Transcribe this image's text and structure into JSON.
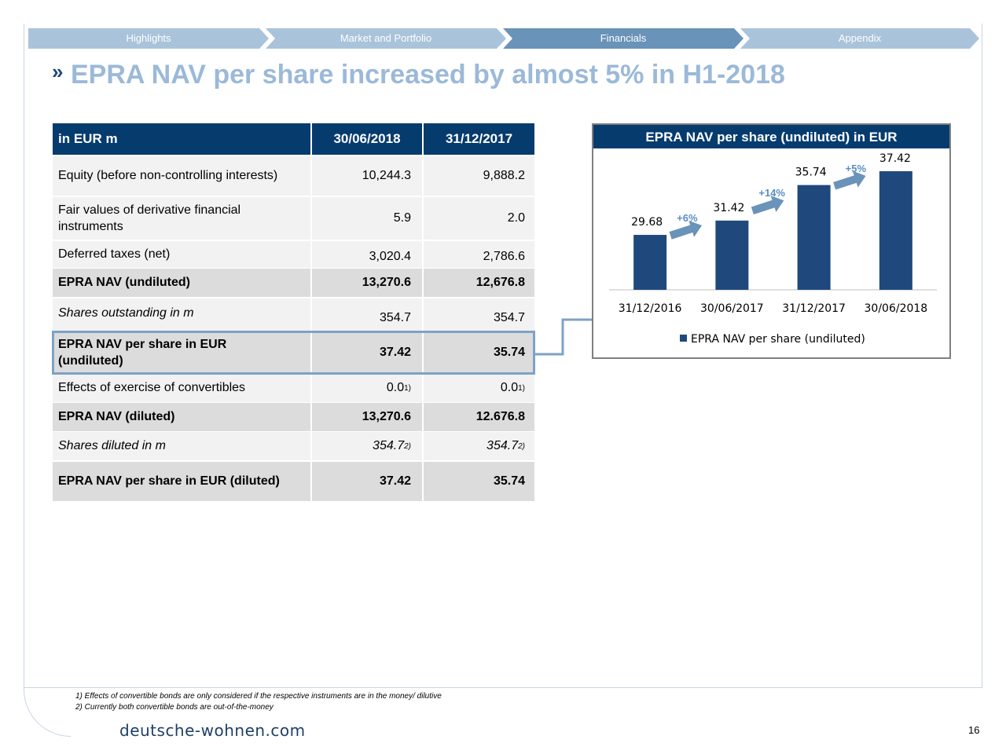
{
  "nav": {
    "tabs": [
      {
        "label": "Highlights",
        "color": "#a9c3da"
      },
      {
        "label": "Market and Portfolio",
        "color": "#a9c3da"
      },
      {
        "label": "Financials",
        "color": "#6993b8"
      },
      {
        "label": "Appendix",
        "color": "#a9c3da"
      }
    ]
  },
  "title": {
    "marker": "»",
    "text": "EPRA NAV per share increased by almost 5% in H1-2018"
  },
  "table": {
    "header": {
      "label": "in EUR m",
      "col1": "30/06/2018",
      "col2": "31/12/2017"
    },
    "rows": [
      {
        "label": "Equity (before non-controlling interests)",
        "v1": "10,244.3",
        "v2": "9,888.2"
      },
      {
        "label": "Fair values of derivative financial instruments",
        "v1": "5.9",
        "v2": "2.0"
      },
      {
        "label": "Deferred taxes (net)",
        "v1": "3,020.4",
        "v2": "2,786.6"
      },
      {
        "label": "EPRA NAV (undiluted)",
        "v1": "13,270.6",
        "v2": "12,676.8"
      },
      {
        "label": "Shares outstanding in m",
        "v1": "354.7",
        "v2": "354.7"
      },
      {
        "label": "EPRA NAV per share in EUR (undiluted)",
        "v1": "37.42",
        "v2": "35.74"
      },
      {
        "label": "Effects of exercise of convertibles",
        "v1": "0.0",
        "v1_sup": "1)",
        "v2": "0.0",
        "v2_sup": "1)"
      },
      {
        "label": "EPRA NAV (diluted)",
        "v1": "13,270.6",
        "v2": "12.676.8"
      },
      {
        "label": "Shares diluted in m",
        "v1": "354.7",
        "v1_sup": "2)",
        "v2": "354.7",
        "v2_sup": "2)"
      },
      {
        "label": "EPRA NAV per share in EUR (diluted)",
        "v1": "37.42",
        "v2": "35.74"
      }
    ]
  },
  "chart_data": {
    "type": "bar",
    "title": "EPRA NAV per share (undiluted) in EUR",
    "categories": [
      "31/12/2016",
      "30/06/2017",
      "31/12/2017",
      "30/06/2018"
    ],
    "series": [
      {
        "name": "EPRA NAV per share (undiluted)",
        "values": [
          29.68,
          31.42,
          35.74,
          37.42
        ]
      }
    ],
    "value_labels": [
      "29.68",
      "31.42",
      "35.74",
      "37.42"
    ],
    "annotations": [
      "+6%",
      "+14%",
      "+5%"
    ],
    "ylim": [
      0,
      40
    ],
    "legend": "bottom",
    "grid": false,
    "bar_color": "#1f497d",
    "arrow_color": "#6993b8",
    "annotation_color": "#5b8dc4"
  },
  "footnotes": [
    "1) Effects of convertible bonds are only considered if the respective instruments are in the money/ dilutive",
    "2) Currently both convertible bonds are out-of-the-money"
  ],
  "footer": {
    "logo": "deutsche-wohnen.com",
    "page": "16"
  }
}
